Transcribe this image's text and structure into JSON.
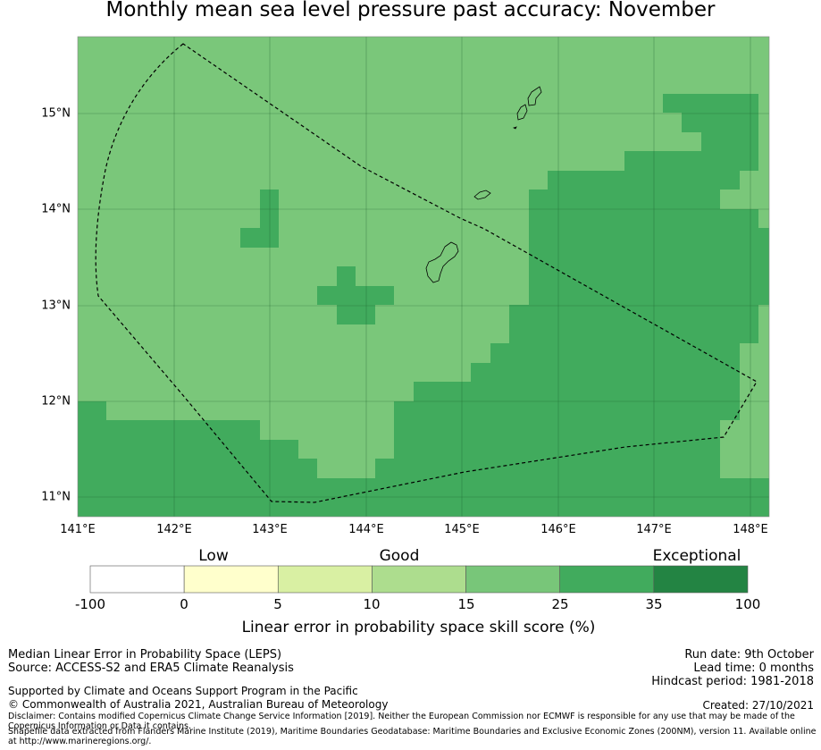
{
  "title": "Monthly mean sea level pressure past accuracy: November",
  "map": {
    "lon_range": [
      141.0,
      148.2
    ],
    "lat_range": [
      10.8,
      15.8
    ],
    "lon_ticks": [
      "141°E",
      "142°E",
      "143°E",
      "144°E",
      "145°E",
      "146°E",
      "147°E",
      "148°E"
    ],
    "lat_ticks": [
      "15°N",
      "14°N",
      "13°N",
      "12°N",
      "11°N"
    ],
    "skill_categories": {
      "15-25": "#7AC77A",
      "25-35": "#41AB5D"
    },
    "grid_cells_25_35_note": "cells drawn from category map below",
    "islands": [
      "Guam",
      "Rota",
      "Saipan / Tinian"
    ]
  },
  "colorbar": {
    "categories": [
      "Low",
      "Good",
      "Exceptional"
    ],
    "ticks": [
      "-100",
      "0",
      "5",
      "10",
      "15",
      "25",
      "35",
      "100"
    ],
    "colors": [
      "#FFFFFF",
      "#FFFFCC",
      "#D9F0A3",
      "#ADDD8E",
      "#78C679",
      "#41AB5D",
      "#238443"
    ],
    "label": "Linear error in probability space skill score (%)"
  },
  "footer": {
    "method": "Median Linear Error in Probability Space (LEPS)",
    "source": "Source: ACCESS-S2 and ERA5 Climate Reanalysis",
    "run_date": "Run date: 9th October",
    "lead_time": "Lead time: 0 months",
    "hindcast": "Hindcast period: 1981-2018",
    "support": "Supported by Climate and Oceans Support Program in the Pacific",
    "copyright": "© Commonwealth of Australia 2021, Australian Bureau of Meteorology",
    "created": "Created: 27/10/2021",
    "disclaimer": "Disclaimer: Contains modified Copernicus Climate Change Service Information [2019]. Neither the European Commission nor ECMWF is responsible for any use that may be made of the Copernicus Information or Data it contains.",
    "shapefile": "Shapefile data extracted from Flanders Marine Institute (2019), Maritime Boundaries Geodatabase: Maritime Boundaries and Exclusive Economic Zones (200NM), version 11. Available online at http://www.marineregions.org/."
  }
}
